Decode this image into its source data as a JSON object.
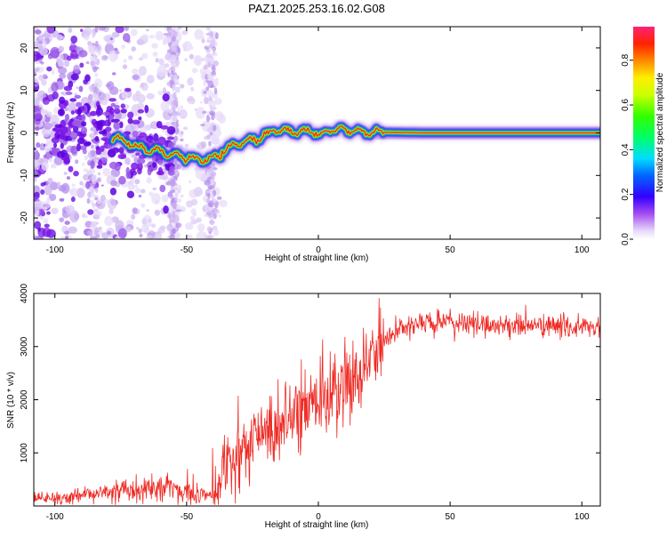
{
  "title": "PAZ1.2025.253.16.02.G08",
  "colors": {
    "snr_line": "#ee2a24",
    "axis": "#000000",
    "background": "#ffffff",
    "spectrum_low": "#d9c7f2",
    "spectrum_mid": "#7a16e6",
    "ridge": "#e0332a"
  },
  "chart_data": [
    {
      "type": "heatmap",
      "name": "spectrogram",
      "title": "PAZ1.2025.253.16.02.G08",
      "xlabel": "Height of straight line (km)",
      "ylabel": "Frequency (Hz)",
      "xlim": [
        -108,
        107
      ],
      "ylim": [
        -25,
        25
      ],
      "x_ticks": [
        -100,
        -50,
        0,
        50,
        100
      ],
      "y_ticks": [
        -20,
        -10,
        0,
        10,
        20
      ],
      "ridge": {
        "x": [
          -78,
          -72,
          -68,
          -64,
          -60,
          -56,
          -52,
          -48,
          -44,
          -40,
          -36,
          -32,
          -28,
          -24,
          -20,
          -16,
          -12,
          -8,
          -4,
          0,
          4,
          8,
          12,
          16,
          20,
          30,
          40,
          60,
          80,
          107
        ],
        "frequency": [
          -1,
          -2.5,
          -3.5,
          -4,
          -4.5,
          -5,
          -5.5,
          -6,
          -6.5,
          -6,
          -4.5,
          -3,
          -2,
          -1.5,
          -0.5,
          1,
          0.5,
          0,
          0.5,
          -0.5,
          0.5,
          1,
          0.5,
          0.3,
          0.2,
          0.1,
          0,
          0,
          0,
          0
        ]
      },
      "colorbar": {
        "label": "Normalized spectral amplitude",
        "range": [
          0.0,
          0.95
        ],
        "ticks": [
          "0.0",
          "0.2",
          "0.4",
          "0.6",
          "0.8"
        ]
      },
      "grid": false
    },
    {
      "type": "line",
      "name": "snr",
      "xlabel": "Height of straight line (km)",
      "ylabel": "SNR (10 * v/v)",
      "xlim": [
        -108,
        107
      ],
      "ylim": [
        0,
        4000
      ],
      "x_ticks": [
        -100,
        -50,
        0,
        50,
        100
      ],
      "y_ticks": [
        1000,
        2000,
        3000,
        4000
      ],
      "series": [
        {
          "name": "SNR",
          "x": [
            -108,
            -100,
            -90,
            -80,
            -70,
            -60,
            -50,
            -45,
            -40,
            -35,
            -30,
            -25,
            -20,
            -15,
            -10,
            -5,
            0,
            5,
            10,
            15,
            20,
            25,
            30,
            35,
            40,
            50,
            60,
            70,
            80,
            90,
            100,
            107
          ],
          "values": [
            120,
            150,
            180,
            250,
            320,
            380,
            250,
            200,
            300,
            700,
            1000,
            1200,
            1300,
            1500,
            1700,
            1800,
            2000,
            2100,
            2300,
            2500,
            2800,
            3100,
            3300,
            3400,
            3450,
            3450,
            3420,
            3400,
            3400,
            3380,
            3370,
            3350
          ]
        }
      ],
      "grid": false
    }
  ]
}
